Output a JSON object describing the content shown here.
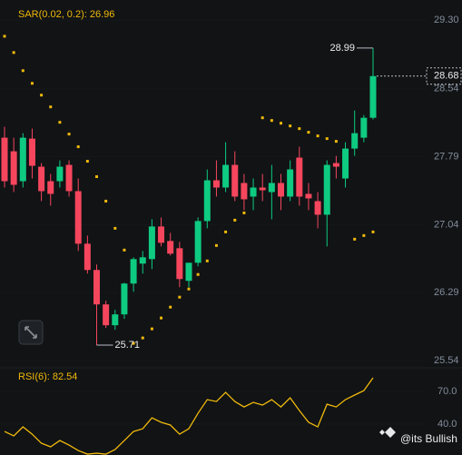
{
  "chart_data": {
    "type": "candlestick",
    "sar_label": "SAR(0.02, 0.2): 26.96",
    "rsi_label": "RSI(6): 82.54",
    "watermark": "@its Bullish",
    "up_color": "#0ecb81",
    "down_color": "#f6465d",
    "sar_color": "#f0b90b",
    "rsi_color": "#f0b90b",
    "open": [
      28.0,
      27.85,
      27.52,
      27.99,
      27.68,
      27.52,
      27.52,
      27.7,
      27.41,
      26.83,
      26.54,
      26.16,
      25.93,
      26.05,
      26.39,
      26.61,
      26.66,
      27.02,
      26.86,
      26.78,
      26.42,
      26.62,
      27.08,
      27.53,
      27.45,
      27.7,
      27.5,
      27.35,
      27.45,
      27.4,
      27.5,
      27.35,
      27.78,
      27.38,
      27.3,
      27.15,
      27.72,
      27.55,
      27.88,
      28.0,
      28.22
    ],
    "high": [
      28.12,
      28.0,
      28.05,
      28.1,
      27.72,
      27.6,
      27.75,
      27.75,
      27.55,
      26.92,
      26.6,
      26.2,
      26.1,
      26.4,
      26.68,
      26.75,
      27.1,
      27.12,
      26.95,
      26.85,
      26.6,
      27.12,
      27.65,
      27.75,
      27.95,
      27.85,
      27.6,
      27.55,
      27.6,
      27.7,
      27.6,
      27.75,
      27.9,
      27.5,
      27.4,
      27.75,
      27.8,
      27.95,
      28.3,
      28.25,
      28.99
    ],
    "low": [
      27.45,
      27.4,
      27.45,
      27.55,
      27.3,
      27.25,
      27.45,
      27.35,
      26.75,
      26.5,
      25.71,
      25.9,
      25.88,
      26.0,
      26.3,
      26.5,
      26.55,
      26.8,
      26.7,
      26.35,
      26.35,
      26.58,
      27.0,
      27.35,
      27.4,
      27.3,
      27.2,
      27.2,
      27.3,
      27.1,
      27.2,
      27.3,
      27.25,
      27.2,
      27.0,
      26.8,
      27.55,
      27.45,
      27.8,
      27.95,
      28.2
    ],
    "close": [
      27.52,
      27.48,
      28.0,
      27.69,
      27.41,
      27.38,
      27.68,
      27.41,
      26.83,
      26.54,
      26.16,
      25.93,
      26.05,
      26.39,
      26.66,
      26.68,
      27.02,
      26.84,
      26.72,
      26.44,
      26.62,
      27.08,
      27.53,
      27.45,
      27.7,
      27.35,
      27.32,
      27.45,
      27.42,
      27.5,
      27.35,
      27.65,
      27.35,
      27.33,
      27.15,
      27.7,
      27.68,
      27.88,
      28.05,
      28.22,
      28.68
    ],
    "sar": [
      29.12,
      28.94,
      28.74,
      28.6,
      28.47,
      28.34,
      28.17,
      28.04,
      27.9,
      27.74,
      27.57,
      27.3,
      27.0,
      26.76,
      25.73,
      25.79,
      25.89,
      26.01,
      26.13,
      26.24,
      26.33,
      26.49,
      26.64,
      26.81,
      26.96,
      27.09,
      27.17,
      null,
      28.22,
      28.19,
      28.16,
      28.13,
      28.1,
      28.06,
      28.02,
      27.99,
      27.96,
      null,
      26.88,
      26.92,
      26.96
    ],
    "rsi": [
      33.3,
      29.2,
      37.5,
      30.8,
      22.5,
      19.2,
      25.0,
      20.8,
      15.8,
      12.5,
      13.3,
      12.5,
      16.7,
      25.0,
      33.3,
      35.8,
      45.8,
      41.7,
      39.2,
      30.8,
      35.8,
      50.0,
      62.5,
      60.8,
      69.2,
      60.8,
      55.8,
      60.0,
      57.5,
      62.5,
      55.8,
      64.2,
      52.5,
      41.7,
      37.5,
      58.3,
      55.8,
      62.5,
      66.7,
      70.8,
      82.54
    ],
    "ylim": [
      25.46,
      29.52
    ],
    "yticks": [
      {
        "value": 29.3,
        "label": "29.30"
      },
      {
        "value": 28.54,
        "label": "28.54"
      },
      {
        "value": 27.79,
        "label": "27.79"
      },
      {
        "value": 27.04,
        "label": "27.04"
      },
      {
        "value": 26.29,
        "label": "26.29"
      },
      {
        "value": 25.54,
        "label": "25.54"
      }
    ],
    "rsi_ylim": [
      11.7,
      91.7
    ],
    "rsi_yticks": [
      {
        "value": 70,
        "label": "70.0"
      },
      {
        "value": 40,
        "label": "40.0"
      }
    ]
  }
}
